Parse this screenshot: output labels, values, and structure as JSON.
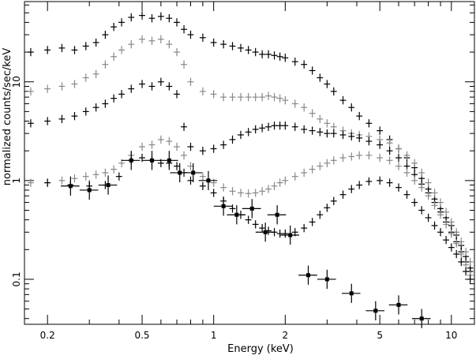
{
  "chart_data": {
    "type": "scatter",
    "title": "",
    "xlabel": "Energy (keV)",
    "ylabel": "normalized counts/sec/keV",
    "x_scale": "log",
    "y_scale": "log",
    "xlim": [
      0.16,
      12.5
    ],
    "ylim": [
      0.035,
      65
    ],
    "grid": false,
    "legend": "none",
    "x_ticks": [
      {
        "value": 0.2,
        "label": "0.2"
      },
      {
        "value": 0.5,
        "label": "0.5"
      },
      {
        "value": 1,
        "label": "1"
      },
      {
        "value": 2,
        "label": "2"
      },
      {
        "value": 5,
        "label": "5"
      },
      {
        "value": 10,
        "label": "10"
      }
    ],
    "y_ticks": [
      {
        "value": 0.1,
        "label": "0.1"
      },
      {
        "value": 1,
        "label": "1"
      },
      {
        "value": 10,
        "label": "10"
      }
    ],
    "series": [
      {
        "color": "#000000",
        "marker": "cross",
        "points": [
          [
            0.17,
            20
          ],
          [
            0.2,
            21
          ],
          [
            0.23,
            22
          ],
          [
            0.26,
            21
          ],
          [
            0.29,
            23
          ],
          [
            0.32,
            25
          ],
          [
            0.35,
            30
          ],
          [
            0.38,
            36
          ],
          [
            0.41,
            40
          ],
          [
            0.45,
            45
          ],
          [
            0.5,
            47
          ],
          [
            0.55,
            44
          ],
          [
            0.6,
            46
          ],
          [
            0.65,
            44
          ],
          [
            0.7,
            40
          ],
          [
            0.75,
            34
          ],
          [
            0.8,
            30
          ],
          [
            0.9,
            28
          ],
          [
            1.0,
            25
          ],
          [
            1.1,
            24
          ],
          [
            1.2,
            23
          ],
          [
            1.3,
            22
          ],
          [
            1.4,
            21
          ],
          [
            1.5,
            20
          ],
          [
            1.6,
            19
          ],
          [
            1.7,
            19
          ],
          [
            1.8,
            18.5
          ],
          [
            1.9,
            18
          ],
          [
            2.0,
            17.5
          ],
          [
            2.2,
            16
          ],
          [
            2.4,
            15
          ],
          [
            2.6,
            13
          ],
          [
            2.8,
            11
          ],
          [
            3.0,
            9.5
          ],
          [
            3.2,
            8
          ],
          [
            3.5,
            6.5
          ],
          [
            3.8,
            5.5
          ],
          [
            4.1,
            4.5
          ],
          [
            4.5,
            3.8
          ],
          [
            5.0,
            3.2
          ],
          [
            5.5,
            2.6
          ],
          [
            6.0,
            2.1
          ],
          [
            6.5,
            1.7
          ],
          [
            7.0,
            1.35
          ],
          [
            7.5,
            1.05
          ],
          [
            8.0,
            0.82
          ],
          [
            8.5,
            0.65
          ],
          [
            9.0,
            0.52
          ],
          [
            9.5,
            0.42
          ],
          [
            10.0,
            0.35
          ],
          [
            10.5,
            0.28
          ],
          [
            11.0,
            0.22
          ],
          [
            11.5,
            0.17
          ],
          [
            12.0,
            0.13
          ]
        ]
      },
      {
        "color": "#888888",
        "marker": "cross",
        "points": [
          [
            0.17,
            8
          ],
          [
            0.2,
            8.5
          ],
          [
            0.23,
            9
          ],
          [
            0.26,
            9.5
          ],
          [
            0.29,
            11
          ],
          [
            0.32,
            12
          ],
          [
            0.35,
            15
          ],
          [
            0.38,
            18
          ],
          [
            0.41,
            21
          ],
          [
            0.45,
            24
          ],
          [
            0.5,
            27
          ],
          [
            0.55,
            26
          ],
          [
            0.6,
            27
          ],
          [
            0.65,
            24
          ],
          [
            0.7,
            20
          ],
          [
            0.75,
            15
          ],
          [
            0.8,
            10
          ],
          [
            0.9,
            8
          ],
          [
            1.0,
            7.5
          ],
          [
            1.1,
            7.0
          ],
          [
            1.2,
            7.0
          ],
          [
            1.3,
            7.0
          ],
          [
            1.4,
            7.0
          ],
          [
            1.5,
            7.0
          ],
          [
            1.6,
            7.0
          ],
          [
            1.7,
            7.2
          ],
          [
            1.8,
            7.0
          ],
          [
            1.9,
            6.8
          ],
          [
            2.0,
            6.5
          ],
          [
            2.2,
            6.0
          ],
          [
            2.4,
            5.5
          ],
          [
            2.6,
            4.8
          ],
          [
            2.8,
            4.2
          ],
          [
            3.0,
            3.8
          ],
          [
            3.2,
            3.5
          ],
          [
            3.5,
            3.2
          ],
          [
            3.8,
            3.0
          ],
          [
            4.1,
            2.9
          ],
          [
            4.5,
            2.8
          ],
          [
            5.0,
            2.6
          ],
          [
            5.5,
            2.4
          ],
          [
            6.0,
            2.1
          ],
          [
            6.5,
            1.8
          ],
          [
            7.0,
            1.5
          ],
          [
            7.5,
            1.2
          ],
          [
            8.0,
            0.95
          ],
          [
            8.5,
            0.75
          ],
          [
            9.0,
            0.6
          ],
          [
            9.5,
            0.48
          ],
          [
            10.0,
            0.38
          ],
          [
            10.5,
            0.3
          ],
          [
            11.0,
            0.24
          ],
          [
            11.5,
            0.19
          ],
          [
            12.0,
            0.15
          ]
        ]
      },
      {
        "color": "#000000",
        "marker": "cross",
        "points": [
          [
            0.17,
            3.8
          ],
          [
            0.2,
            4.0
          ],
          [
            0.23,
            4.2
          ],
          [
            0.26,
            4.5
          ],
          [
            0.29,
            5.0
          ],
          [
            0.32,
            5.5
          ],
          [
            0.35,
            6.0
          ],
          [
            0.38,
            6.8
          ],
          [
            0.41,
            7.5
          ],
          [
            0.45,
            8.5
          ],
          [
            0.5,
            9.5
          ],
          [
            0.55,
            9.0
          ],
          [
            0.6,
            10.0
          ],
          [
            0.65,
            9.0
          ],
          [
            0.7,
            7.5
          ],
          [
            0.75,
            3.5
          ],
          [
            0.8,
            2.2
          ],
          [
            0.9,
            2.0
          ],
          [
            1.0,
            2.1
          ],
          [
            1.1,
            2.3
          ],
          [
            1.2,
            2.6
          ],
          [
            1.3,
            2.9
          ],
          [
            1.4,
            3.1
          ],
          [
            1.5,
            3.3
          ],
          [
            1.6,
            3.4
          ],
          [
            1.7,
            3.5
          ],
          [
            1.8,
            3.6
          ],
          [
            1.9,
            3.6
          ],
          [
            2.0,
            3.6
          ],
          [
            2.2,
            3.5
          ],
          [
            2.4,
            3.3
          ],
          [
            2.6,
            3.2
          ],
          [
            2.8,
            3.1
          ],
          [
            3.0,
            3.0
          ],
          [
            3.2,
            3.0
          ],
          [
            3.5,
            2.9
          ],
          [
            3.8,
            2.8
          ],
          [
            4.1,
            2.7
          ],
          [
            4.5,
            2.5
          ],
          [
            5.0,
            2.3
          ],
          [
            5.5,
            2.0
          ],
          [
            6.0,
            1.7
          ],
          [
            6.5,
            1.4
          ],
          [
            7.0,
            1.15
          ],
          [
            7.5,
            0.92
          ],
          [
            8.0,
            0.75
          ],
          [
            8.5,
            0.6
          ],
          [
            9.0,
            0.48
          ],
          [
            9.5,
            0.38
          ],
          [
            10.0,
            0.3
          ],
          [
            10.5,
            0.24
          ],
          [
            11.0,
            0.19
          ],
          [
            11.5,
            0.15
          ],
          [
            12.0,
            0.12
          ]
        ]
      },
      {
        "color": "#888888",
        "marker": "cross",
        "points": [
          [
            0.17,
            0.95
          ],
          [
            0.2,
            0.95
          ],
          [
            0.23,
            1.0
          ],
          [
            0.26,
            1.05
          ],
          [
            0.29,
            1.1
          ],
          [
            0.32,
            1.15
          ],
          [
            0.35,
            1.2
          ],
          [
            0.38,
            1.3
          ],
          [
            0.41,
            1.5
          ],
          [
            0.45,
            1.8
          ],
          [
            0.5,
            2.2
          ],
          [
            0.55,
            2.3
          ],
          [
            0.6,
            2.6
          ],
          [
            0.65,
            2.5
          ],
          [
            0.7,
            2.2
          ],
          [
            0.75,
            1.8
          ],
          [
            0.8,
            1.4
          ],
          [
            0.9,
            1.1
          ],
          [
            1.0,
            0.95
          ],
          [
            1.1,
            0.85
          ],
          [
            1.2,
            0.78
          ],
          [
            1.3,
            0.75
          ],
          [
            1.4,
            0.74
          ],
          [
            1.5,
            0.75
          ],
          [
            1.6,
            0.78
          ],
          [
            1.7,
            0.82
          ],
          [
            1.8,
            0.88
          ],
          [
            1.9,
            0.95
          ],
          [
            2.0,
            1.0
          ],
          [
            2.2,
            1.1
          ],
          [
            2.4,
            1.2
          ],
          [
            2.6,
            1.3
          ],
          [
            2.8,
            1.4
          ],
          [
            3.0,
            1.5
          ],
          [
            3.2,
            1.6
          ],
          [
            3.5,
            1.7
          ],
          [
            3.8,
            1.75
          ],
          [
            4.1,
            1.8
          ],
          [
            4.5,
            1.8
          ],
          [
            5.0,
            1.7
          ],
          [
            5.5,
            1.6
          ],
          [
            6.0,
            1.4
          ],
          [
            6.5,
            1.2
          ],
          [
            7.0,
            1.0
          ],
          [
            7.5,
            0.85
          ],
          [
            8.0,
            0.7
          ],
          [
            8.5,
            0.56
          ],
          [
            9.0,
            0.45
          ],
          [
            9.5,
            0.36
          ],
          [
            10.0,
            0.29
          ],
          [
            10.5,
            0.23
          ],
          [
            11.0,
            0.18
          ],
          [
            11.5,
            0.14
          ],
          [
            12.0,
            0.11
          ]
        ]
      },
      {
        "color": "#000000",
        "marker": "cross",
        "points": [
          [
            0.2,
            0.95
          ],
          [
            0.25,
            0.9
          ],
          [
            0.3,
            0.88
          ],
          [
            0.35,
            0.9
          ],
          [
            0.4,
            1.1
          ],
          [
            0.45,
            1.6
          ],
          [
            0.5,
            1.7
          ],
          [
            0.55,
            1.6
          ],
          [
            0.6,
            1.5
          ],
          [
            0.65,
            1.5
          ],
          [
            0.7,
            1.4
          ],
          [
            0.75,
            1.2
          ],
          [
            0.8,
            1.0
          ],
          [
            0.9,
            0.88
          ],
          [
            1.0,
            0.75
          ],
          [
            1.1,
            0.62
          ],
          [
            1.2,
            0.52
          ],
          [
            1.3,
            0.45
          ],
          [
            1.4,
            0.4
          ],
          [
            1.5,
            0.36
          ],
          [
            1.6,
            0.33
          ],
          [
            1.7,
            0.31
          ],
          [
            1.8,
            0.3
          ],
          [
            1.9,
            0.29
          ],
          [
            2.0,
            0.29
          ],
          [
            2.2,
            0.3
          ],
          [
            2.4,
            0.33
          ],
          [
            2.6,
            0.38
          ],
          [
            2.8,
            0.45
          ],
          [
            3.0,
            0.53
          ],
          [
            3.2,
            0.62
          ],
          [
            3.5,
            0.72
          ],
          [
            3.8,
            0.82
          ],
          [
            4.1,
            0.9
          ],
          [
            4.5,
            0.98
          ],
          [
            5.0,
            1.0
          ],
          [
            5.5,
            0.95
          ],
          [
            6.0,
            0.85
          ],
          [
            6.5,
            0.72
          ],
          [
            7.0,
            0.6
          ],
          [
            7.5,
            0.5
          ],
          [
            8.0,
            0.42
          ],
          [
            8.5,
            0.35
          ],
          [
            9.0,
            0.3
          ],
          [
            9.5,
            0.25
          ],
          [
            10.0,
            0.21
          ],
          [
            10.5,
            0.18
          ],
          [
            11.0,
            0.15
          ],
          [
            11.5,
            0.12
          ],
          [
            12.0,
            0.1
          ]
        ]
      },
      {
        "color": "#000000",
        "marker": "square",
        "points": [
          [
            0.25,
            0.88
          ],
          [
            0.3,
            0.8
          ],
          [
            0.36,
            0.9
          ],
          [
            0.45,
            1.6
          ],
          [
            0.55,
            1.6
          ],
          [
            0.65,
            1.6
          ],
          [
            0.72,
            1.2
          ],
          [
            0.82,
            1.2
          ],
          [
            0.95,
            1.0
          ],
          [
            1.1,
            0.55
          ],
          [
            1.25,
            0.45
          ],
          [
            1.45,
            0.52
          ],
          [
            1.65,
            0.3
          ],
          [
            1.85,
            0.45
          ],
          [
            2.1,
            0.28
          ],
          [
            2.5,
            0.11
          ],
          [
            3.0,
            0.1
          ],
          [
            3.8,
            0.072
          ],
          [
            4.8,
            0.048
          ],
          [
            6.0,
            0.055
          ],
          [
            7.5,
            0.04
          ]
        ]
      }
    ]
  }
}
